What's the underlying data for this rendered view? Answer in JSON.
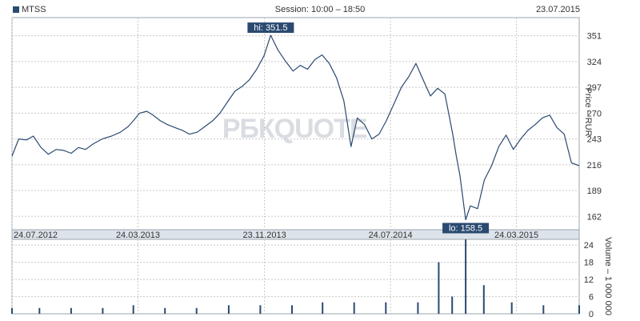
{
  "header": {
    "ticker": "MTSS",
    "session": "Session: 10:00 – 18:50",
    "date": "23.07.2015"
  },
  "watermark": "РБКQUOTE",
  "colors": {
    "line": "#2a4a70",
    "grid": "#c8c8c8",
    "border": "#9aa4ae",
    "strip": "#dde3ea",
    "annotation": "#2a4a70"
  },
  "chart_data": [
    {
      "type": "line",
      "title": "",
      "xlabel": "",
      "ylabel": "Price – RUR",
      "ylim": [
        148,
        370
      ],
      "yticks": [
        351,
        324,
        297,
        270,
        243,
        216,
        189,
        162
      ],
      "x_tick_labels": [
        "24.07.2012",
        "24.03.2013",
        "23.11.2013",
        "24.07.2014",
        "24.03.2015"
      ],
      "x_range": [
        "2012-07-24",
        "2015-07-23"
      ],
      "grid": true,
      "annotations": [
        {
          "label": "hi: 351.5",
          "date": "2013-12-05",
          "value": 351.5
        },
        {
          "label": "lo: 158.5",
          "date": "2014-12-16",
          "value": 158.5
        }
      ],
      "series": [
        {
          "points": [
            [
              "2012-07-24",
              225
            ],
            [
              "2012-08-06",
              243
            ],
            [
              "2012-08-21",
              242
            ],
            [
              "2012-09-03",
              246
            ],
            [
              "2012-09-18",
              234
            ],
            [
              "2012-10-02",
              227
            ],
            [
              "2012-10-17",
              232
            ],
            [
              "2012-11-01",
              231
            ],
            [
              "2012-11-15",
              228
            ],
            [
              "2012-11-29",
              234
            ],
            [
              "2012-12-13",
              232
            ],
            [
              "2012-12-28",
              238
            ],
            [
              "2013-01-14",
              243
            ],
            [
              "2013-02-01",
              246
            ],
            [
              "2013-02-18",
              250
            ],
            [
              "2013-03-05",
              256
            ],
            [
              "2013-03-15",
              262
            ],
            [
              "2013-03-27",
              270
            ],
            [
              "2013-04-10",
              272
            ],
            [
              "2013-04-22",
              268
            ],
            [
              "2013-05-06",
              262
            ],
            [
              "2013-05-20",
              258
            ],
            [
              "2013-06-03",
              255
            ],
            [
              "2013-06-18",
              252
            ],
            [
              "2013-07-01",
              248
            ],
            [
              "2013-07-16",
              250
            ],
            [
              "2013-07-31",
              256
            ],
            [
              "2013-08-15",
              262
            ],
            [
              "2013-08-29",
              270
            ],
            [
              "2013-09-13",
              282
            ],
            [
              "2013-09-27",
              293
            ],
            [
              "2013-10-11",
              298
            ],
            [
              "2013-10-25",
              305
            ],
            [
              "2013-11-08",
              316
            ],
            [
              "2013-11-22",
              330
            ],
            [
              "2013-12-05",
              351.5
            ],
            [
              "2013-12-19",
              336
            ],
            [
              "2014-01-03",
              324
            ],
            [
              "2014-01-17",
              314
            ],
            [
              "2014-01-31",
              320
            ],
            [
              "2014-02-14",
              316
            ],
            [
              "2014-02-28",
              326
            ],
            [
              "2014-03-14",
              331
            ],
            [
              "2014-03-28",
              322
            ],
            [
              "2014-04-11",
              307
            ],
            [
              "2014-04-25",
              283
            ],
            [
              "2014-05-09",
              235
            ],
            [
              "2014-05-21",
              265
            ],
            [
              "2014-06-04",
              258
            ],
            [
              "2014-06-18",
              243
            ],
            [
              "2014-07-02",
              248
            ],
            [
              "2014-07-16",
              262
            ],
            [
              "2014-07-31",
              280
            ],
            [
              "2014-08-14",
              297
            ],
            [
              "2014-08-28",
              308
            ],
            [
              "2014-09-11",
              322
            ],
            [
              "2014-09-25",
              305
            ],
            [
              "2014-10-09",
              288
            ],
            [
              "2014-10-23",
              296
            ],
            [
              "2014-11-06",
              290
            ],
            [
              "2014-11-14",
              268
            ],
            [
              "2014-11-21",
              248
            ],
            [
              "2014-11-28",
              225
            ],
            [
              "2014-12-05",
              205
            ],
            [
              "2014-12-16",
              158.5
            ],
            [
              "2014-12-25",
              173
            ],
            [
              "2015-01-08",
              170
            ],
            [
              "2015-01-21",
              200
            ],
            [
              "2015-02-04",
              215
            ],
            [
              "2015-02-18",
              235
            ],
            [
              "2015-03-04",
              247
            ],
            [
              "2015-03-18",
              232
            ],
            [
              "2015-04-01",
              243
            ],
            [
              "2015-04-15",
              252
            ],
            [
              "2015-04-29",
              258
            ],
            [
              "2015-05-13",
              265
            ],
            [
              "2015-05-27",
              268
            ],
            [
              "2015-06-10",
              255
            ],
            [
              "2015-06-24",
              248
            ],
            [
              "2015-07-08",
              218
            ],
            [
              "2015-07-23",
              215
            ]
          ]
        }
      ]
    },
    {
      "type": "bar",
      "title": "",
      "xlabel": "",
      "ylabel": "Volume – 1 000 000",
      "ylim": [
        0,
        26
      ],
      "yticks": [
        24,
        18,
        12,
        6,
        0
      ],
      "grid": true,
      "notes": "daily volume bars; baseline roughly 1–3 million with spikes",
      "series": [
        {
          "points": [
            [
              "2012-07-24",
              2
            ],
            [
              "2012-09-15",
              2
            ],
            [
              "2012-11-15",
              2
            ],
            [
              "2013-01-15",
              2
            ],
            [
              "2013-03-15",
              3
            ],
            [
              "2013-05-15",
              2
            ],
            [
              "2013-07-15",
              2
            ],
            [
              "2013-09-15",
              3
            ],
            [
              "2013-11-15",
              3
            ],
            [
              "2014-01-15",
              3
            ],
            [
              "2014-03-15",
              4
            ],
            [
              "2014-05-15",
              4
            ],
            [
              "2014-07-15",
              4
            ],
            [
              "2014-09-15",
              4
            ],
            [
              "2014-10-25",
              18
            ],
            [
              "2014-11-20",
              6
            ],
            [
              "2014-12-16",
              26
            ],
            [
              "2015-01-20",
              10
            ],
            [
              "2015-03-15",
              4
            ],
            [
              "2015-05-15",
              3
            ],
            [
              "2015-07-23",
              3
            ]
          ]
        }
      ]
    }
  ]
}
